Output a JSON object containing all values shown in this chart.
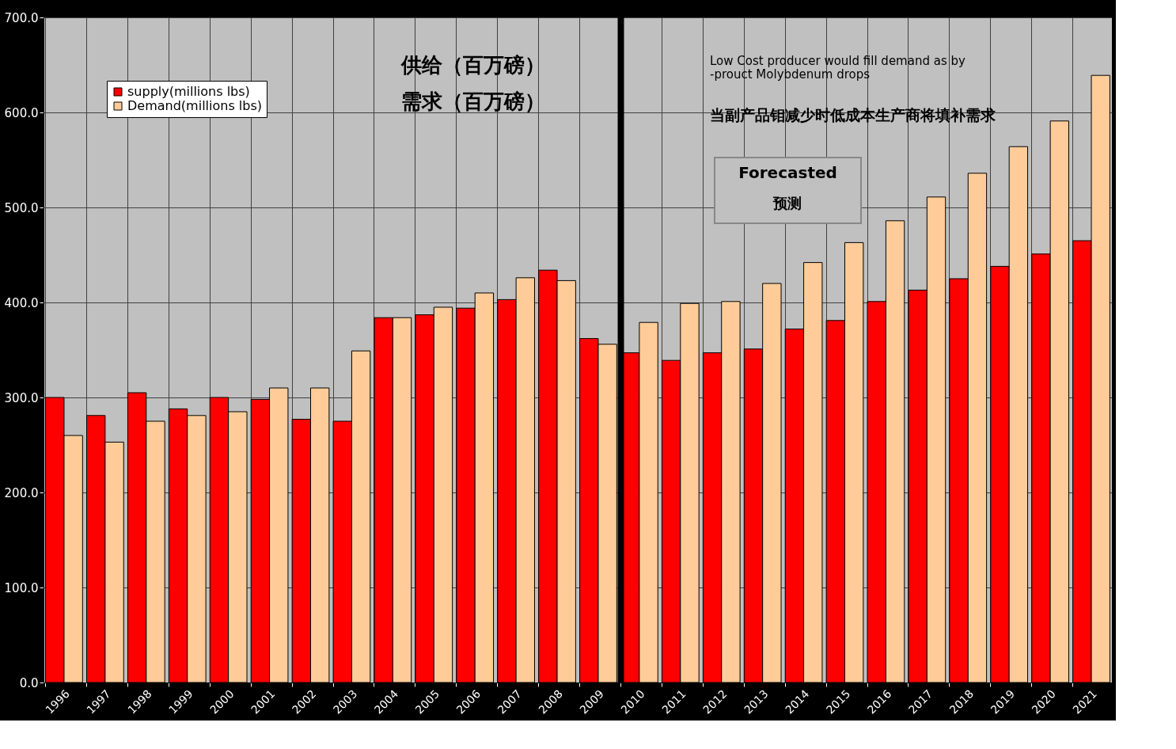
{
  "chart_data": {
    "type": "bar",
    "categories": [
      "1996",
      "1997",
      "1998",
      "1999",
      "2000",
      "2001",
      "2002",
      "2003",
      "2004",
      "2005",
      "2006",
      "2007",
      "2008",
      "2009",
      "2010",
      "2011",
      "2012",
      "2013",
      "2014",
      "2015",
      "2016",
      "2017",
      "2018",
      "2019",
      "2020",
      "2021"
    ],
    "series": [
      {
        "name": "supply(millions lbs)",
        "color": "#ff0000",
        "values": [
          300,
          281,
          305,
          288,
          300,
          298,
          277,
          275,
          384,
          387,
          394,
          403,
          434,
          362,
          347,
          339,
          347,
          351,
          372,
          381,
          401,
          413,
          425,
          438,
          451,
          465
        ]
      },
      {
        "name": "Demand(millions lbs)",
        "color": "#ffcc99",
        "values": [
          260,
          253,
          275,
          281,
          285,
          310,
          310,
          349,
          384,
          395,
          410,
          426,
          423,
          356,
          379,
          399,
          401,
          420,
          442,
          463,
          486,
          511,
          536,
          564,
          591,
          639
        ]
      }
    ],
    "ylim": [
      0,
      700
    ],
    "yticks": [
      {
        "value": 0,
        "label": "0.0"
      },
      {
        "value": 100,
        "label": "100.0"
      },
      {
        "value": 200,
        "label": "200.0"
      },
      {
        "value": 300,
        "label": "300.0"
      },
      {
        "value": 400,
        "label": "400.0"
      },
      {
        "value": 500,
        "label": "500.0"
      },
      {
        "value": 600,
        "label": "600.0"
      },
      {
        "value": 700,
        "label": "700.0"
      }
    ],
    "grid": true,
    "legend": "top left",
    "ref_lines": [
      {
        "axis": "x",
        "value": "2010",
        "label": null,
        "color": "#000000"
      }
    ],
    "annotations": [
      "供给（百万磅）",
      "需求（百万磅）",
      "Low  Cost producer would fill demand as by -prouct Molybdenum drops",
      "当副产品钼减少时低成本生产商将填补需求",
      "Forecasted",
      "预测"
    ]
  }
}
